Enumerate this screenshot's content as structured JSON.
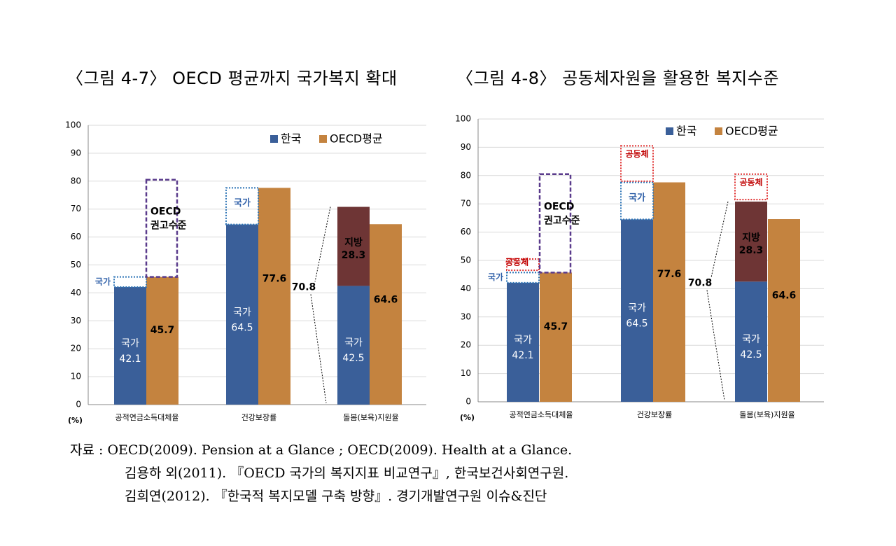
{
  "titles": [
    "〈그림 4-7〉 OECD 평균까지 국가복지 확대",
    "〈그림 4-8〉 공동체자원을 활용한 복지수준"
  ],
  "source": {
    "line1": "자료 : OECD(2009). Pension at a Glance ; OECD(2009). Health at a Glance.",
    "line2": "김용하 외(2011). 『OECD 국가의 복지지표 비교연구』, 한국보건사회연구원.",
    "line3": "김희연(2012). 『한국적 복지모델 구축 방향』. 경기개발연구원 이슈&진단"
  },
  "colors": {
    "korea": "#3a5f99",
    "oecd": "#c4833f",
    "local": "#6e3535",
    "purple": "#5a3b8c",
    "state_dot": "#2e75b6",
    "community_dot": "#e03030"
  },
  "chart_data": [
    {
      "type": "bar",
      "title": "〈그림 4-7〉 OECD 평균까지 국가복지 확대",
      "unit_label": "(%)",
      "ylim": [
        0,
        100
      ],
      "yticks": [
        0,
        10,
        20,
        30,
        40,
        50,
        60,
        70,
        80,
        90,
        100
      ],
      "categories": [
        "공적연금소득대체율",
        "건강보장률",
        "돌봄(보육)지원율"
      ],
      "legend": [
        "한국",
        "OECD평균"
      ],
      "series": [
        {
          "name": "한국",
          "values": [
            42.1,
            64.5,
            42.5
          ],
          "labels": [
            "국가\n42.1",
            "국가\n64.5",
            "국가\n42.5"
          ]
        },
        {
          "name": "OECD평균",
          "values": [
            45.7,
            77.6,
            64.6
          ],
          "labels": [
            "45.7",
            "77.6",
            "64.6"
          ]
        }
      ],
      "stacked_local": {
        "category": 2,
        "from": 42.5,
        "to": 70.8,
        "label": "지방\n28.3"
      },
      "total_callout": "70.8",
      "state_boxes": [
        {
          "category": 0,
          "from": 42.1,
          "to": 45.7,
          "label": "국가"
        },
        {
          "category": 1,
          "from": 64.5,
          "to": 77.6,
          "label": "국가"
        }
      ],
      "community_boxes": [],
      "recommend_box": {
        "category": 0,
        "from": 45.7,
        "to": 80.5,
        "label": "OECD\n권고수준"
      }
    },
    {
      "type": "bar",
      "title": "〈그림 4-8〉 공동체자원을 활용한 복지수준",
      "unit_label": "(%)",
      "ylim": [
        0,
        100
      ],
      "yticks": [
        0,
        10,
        20,
        30,
        40,
        50,
        60,
        70,
        80,
        90,
        100
      ],
      "categories": [
        "공적연금소득대체율",
        "건강보장률",
        "돌봄(보육)지원율"
      ],
      "legend": [
        "한국",
        "OECD평균"
      ],
      "series": [
        {
          "name": "한국",
          "values": [
            42.1,
            64.5,
            42.5
          ],
          "labels": [
            "국가\n42.1",
            "국가\n64.5",
            "국가\n42.5"
          ]
        },
        {
          "name": "OECD평균",
          "values": [
            45.7,
            77.6,
            64.6
          ],
          "labels": [
            "45.7",
            "77.6",
            "64.6"
          ]
        }
      ],
      "stacked_local": {
        "category": 2,
        "from": 42.5,
        "to": 70.8,
        "label": "지방\n28.3"
      },
      "total_callout": "70.8",
      "state_boxes": [
        {
          "category": 0,
          "from": 42.1,
          "to": 45.7,
          "label": "국가"
        },
        {
          "category": 1,
          "from": 64.5,
          "to": 77.6,
          "label": "국가"
        }
      ],
      "community_boxes": [
        {
          "category": 0,
          "from": 46.5,
          "to": 50.5,
          "label": "공동체"
        },
        {
          "category": 1,
          "from": 78.0,
          "to": 90.5,
          "label": "공동체"
        },
        {
          "category": 2,
          "from": 71.5,
          "to": 80.5,
          "label": "공동체"
        }
      ],
      "recommend_box": {
        "category": 0,
        "from": 45.7,
        "to": 80.5,
        "label": "OECD\n권고수준"
      }
    }
  ]
}
